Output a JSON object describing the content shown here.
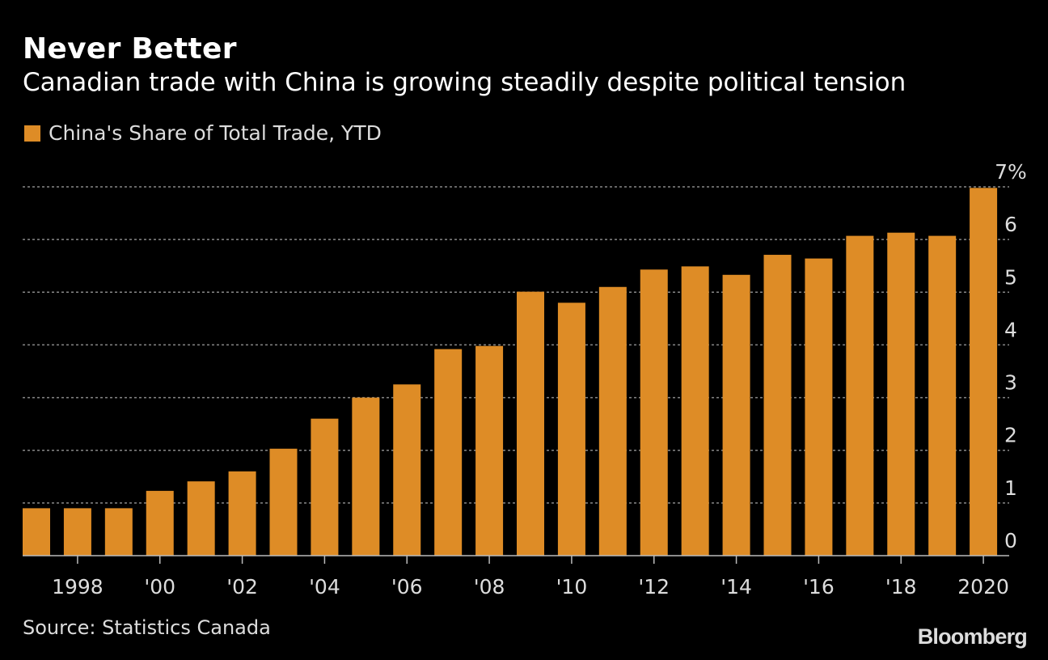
{
  "colors": {
    "background": "#000000",
    "bar": "#DE8C26",
    "grid": "#888888",
    "text": "#ffffff",
    "muted": "#dddddd"
  },
  "header": {
    "title": "Never Better",
    "subtitle": "Canadian trade with China is growing steadily despite political tension"
  },
  "footer": {
    "source": "Source: Statistics Canada",
    "brand": "Bloomberg"
  },
  "chart_data": {
    "type": "bar",
    "title": "Never Better",
    "subtitle": "Canadian trade with China is growing steadily despite political tension",
    "series": [
      {
        "name": "China's Share of Total Trade, YTD",
        "color": "#DE8C26",
        "values": [
          0.9,
          0.9,
          0.9,
          1.23,
          1.41,
          1.6,
          2.03,
          2.6,
          3.0,
          3.25,
          3.92,
          3.98,
          5.01,
          4.8,
          5.1,
          5.43,
          5.49,
          5.33,
          5.71,
          5.64,
          6.07,
          6.13,
          6.07,
          6.98
        ]
      }
    ],
    "x": [
      1997,
      1998,
      1999,
      2000,
      2001,
      2002,
      2003,
      2004,
      2005,
      2006,
      2007,
      2008,
      2009,
      2010,
      2011,
      2012,
      2013,
      2014,
      2015,
      2016,
      2017,
      2018,
      2019,
      2020
    ],
    "x_tick_labels": [
      {
        "year": 1998,
        "label": "1998"
      },
      {
        "year": 2000,
        "label": "'00"
      },
      {
        "year": 2002,
        "label": "'02"
      },
      {
        "year": 2004,
        "label": "'04"
      },
      {
        "year": 2006,
        "label": "'06"
      },
      {
        "year": 2008,
        "label": "'08"
      },
      {
        "year": 2010,
        "label": "'10"
      },
      {
        "year": 2012,
        "label": "'12"
      },
      {
        "year": 2014,
        "label": "'14"
      },
      {
        "year": 2016,
        "label": "'16"
      },
      {
        "year": 2018,
        "label": "'18"
      },
      {
        "year": 2020,
        "label": "2020"
      }
    ],
    "y_ticks": [
      {
        "value": 0,
        "label": "0"
      },
      {
        "value": 1,
        "label": "1"
      },
      {
        "value": 2,
        "label": "2"
      },
      {
        "value": 3,
        "label": "3"
      },
      {
        "value": 4,
        "label": "4"
      },
      {
        "value": 5,
        "label": "5"
      },
      {
        "value": 6,
        "label": "6"
      },
      {
        "value": 7,
        "label": "7%"
      }
    ],
    "ylim": [
      0,
      7
    ],
    "grid": true,
    "legend": "top-left",
    "y_axis_side": "right"
  }
}
